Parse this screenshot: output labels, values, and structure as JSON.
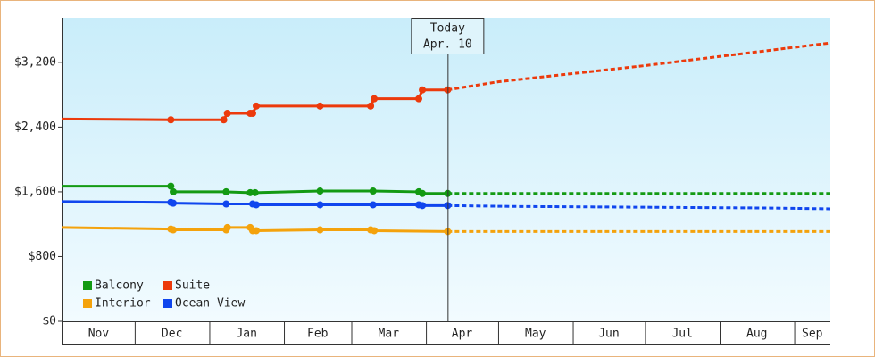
{
  "chart_data": {
    "type": "line",
    "xlim": [
      0,
      319
    ],
    "xticks": [
      {
        "value": 0,
        "label": "Nov"
      },
      {
        "value": 30,
        "label": "Dec"
      },
      {
        "value": 61,
        "label": "Jan"
      },
      {
        "value": 92,
        "label": "Feb"
      },
      {
        "value": 120,
        "label": "Mar"
      },
      {
        "value": 151,
        "label": "Apr"
      },
      {
        "value": 181,
        "label": "May"
      },
      {
        "value": 212,
        "label": "Jun"
      },
      {
        "value": 242,
        "label": "Jul"
      },
      {
        "value": 273,
        "label": "Aug"
      },
      {
        "value": 304,
        "label": "Sep"
      }
    ],
    "ylim": [
      0,
      3750
    ],
    "yticks": [
      {
        "value": 0,
        "label": "$0"
      },
      {
        "value": 800,
        "label": "$800"
      },
      {
        "value": 1600,
        "label": "$1,600"
      },
      {
        "value": 2400,
        "label": "$2,400"
      },
      {
        "value": 3200,
        "label": "$3,200"
      }
    ],
    "today": {
      "x": 160,
      "label": "Today",
      "date": "Apr. 10"
    },
    "legend": "bottom-left",
    "series": [
      {
        "name": "Balcony",
        "color": "#139a13",
        "x": [
          0,
          45,
          46,
          68,
          78,
          80,
          107,
          129,
          148,
          149.5,
          160
        ],
        "values": [
          1670,
          1670,
          1600,
          1600,
          1590,
          1590,
          1610,
          1610,
          1600,
          1580,
          1580
        ],
        "forecast": {
          "x": [
            160,
            319
          ],
          "values": [
            1580,
            1580
          ]
        }
      },
      {
        "name": "Suite",
        "color": "#ec3a0c",
        "x": [
          0,
          45,
          67,
          68.5,
          78,
          79,
          80.5,
          107,
          128,
          129.5,
          148,
          149.5,
          160
        ],
        "values": [
          2500,
          2490,
          2490,
          2570,
          2570,
          2570,
          2660,
          2660,
          2660,
          2750,
          2750,
          2860,
          2860
        ],
        "forecast": {
          "x": [
            160,
            181,
            242,
            319
          ],
          "values": [
            2860,
            2960,
            3160,
            3440
          ]
        }
      },
      {
        "name": "Interior",
        "color": "#f4a20c",
        "x": [
          0,
          45,
          46,
          68,
          68.5,
          78,
          79,
          80.5,
          107,
          128,
          129.5,
          160
        ],
        "values": [
          1160,
          1140,
          1130,
          1130,
          1160,
          1160,
          1120,
          1120,
          1130,
          1130,
          1120,
          1110
        ],
        "forecast": {
          "x": [
            160,
            319
          ],
          "values": [
            1110,
            1110
          ]
        }
      },
      {
        "name": "Ocean View",
        "color": "#1046ee",
        "x": [
          0,
          45,
          46,
          68,
          79,
          80.5,
          107,
          129,
          148,
          149.5,
          160
        ],
        "values": [
          1480,
          1470,
          1460,
          1450,
          1450,
          1440,
          1440,
          1440,
          1440,
          1430,
          1430
        ],
        "forecast": {
          "x": [
            160,
            186,
            242,
            294,
            319
          ],
          "values": [
            1430,
            1420,
            1410,
            1400,
            1390
          ]
        }
      }
    ]
  }
}
